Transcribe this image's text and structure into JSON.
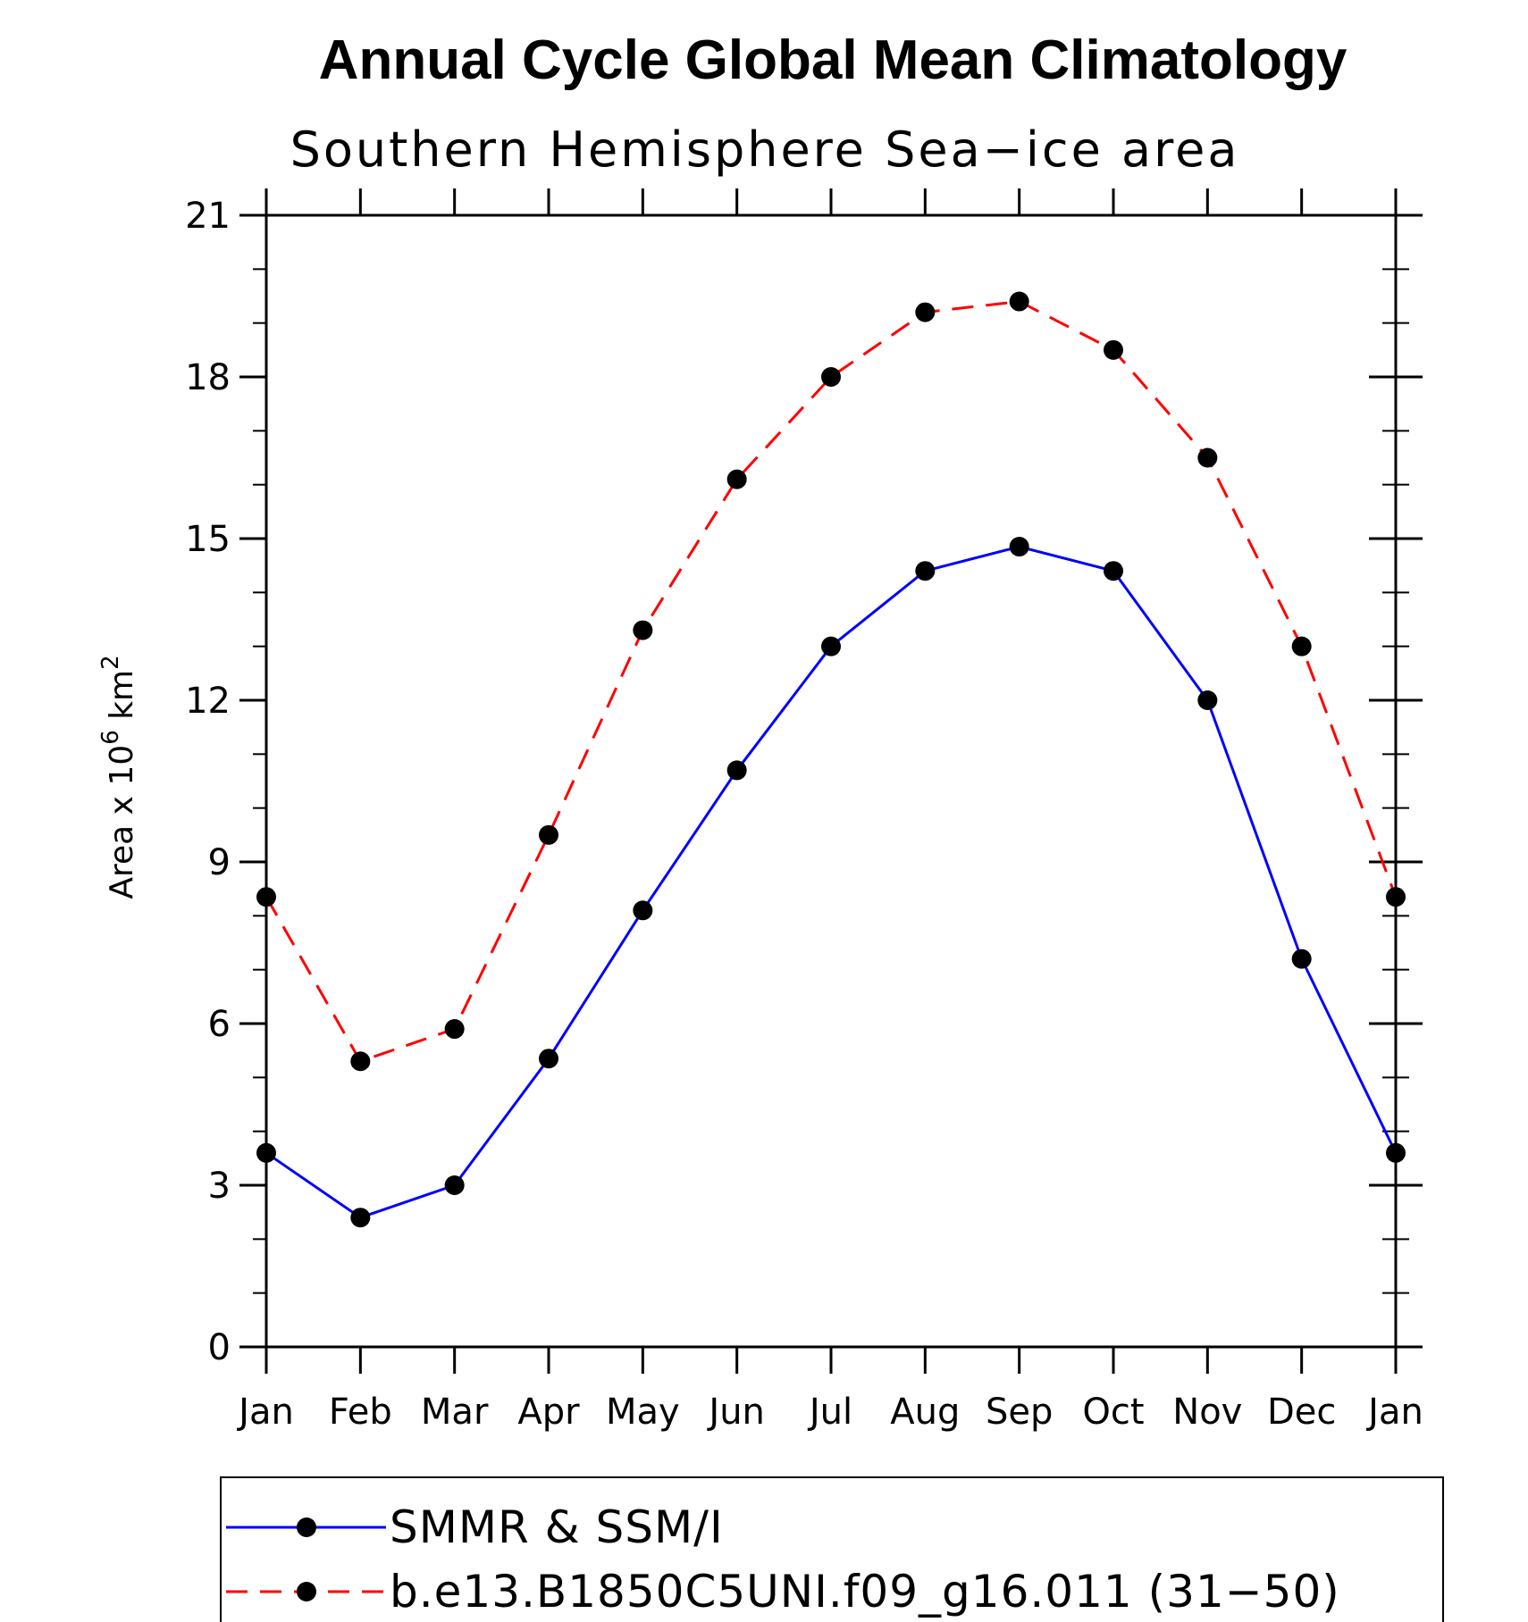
{
  "chart_data": {
    "type": "line",
    "title": "Annual Cycle Global Mean Climatology",
    "subtitle": "Southern Hemisphere Sea−ice area",
    "ylabel": {
      "text": "Area x 10",
      "superscript_1": "6",
      "unit": " km",
      "superscript_2": "2"
    },
    "ylim": [
      0,
      21
    ],
    "yticks": [
      "0",
      "3",
      "6",
      "9",
      "12",
      "15",
      "18",
      "21"
    ],
    "categories": [
      "Jan",
      "Feb",
      "Mar",
      "Apr",
      "May",
      "Jun",
      "Jul",
      "Aug",
      "Sep",
      "Oct",
      "Nov",
      "Dec",
      "Jan"
    ],
    "series": [
      {
        "name": "SMMR & SSM/I",
        "color": "#0000ff",
        "dash": "solid",
        "marker": "filled-circle",
        "values": [
          3.6,
          2.4,
          3.0,
          5.35,
          8.1,
          10.7,
          13.0,
          14.4,
          14.85,
          14.4,
          12.0,
          7.2,
          3.6
        ]
      },
      {
        "name": "b.e13.B1850C5UNI.f09_g16.011 (31−50)",
        "color": "#ff0000",
        "dash": "dashed",
        "marker": "filled-circle",
        "values": [
          8.35,
          5.3,
          5.9,
          9.5,
          13.3,
          16.1,
          18.0,
          19.2,
          19.4,
          18.5,
          16.5,
          13.0,
          8.35
        ]
      }
    ],
    "grid": false,
    "legend_position": "bottom"
  }
}
